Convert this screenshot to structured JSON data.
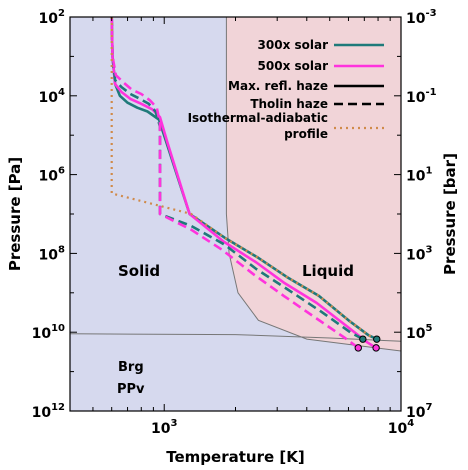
{
  "chart_data": {
    "type": "line",
    "xlabel": "Temperature [K]",
    "ylabel_left": "Pressure [Pa]",
    "ylabel_right": "Pressure [bar]",
    "x_scale": "log",
    "y_scale": "log",
    "xlim": [
      400,
      10000
    ],
    "ylim_pa": [
      100,
      1000000000000
    ],
    "x_ticks": [
      {
        "label": "10",
        "exp": "3"
      },
      {
        "label": "10",
        "exp": "4"
      }
    ],
    "y_ticks_left": [
      {
        "label": "10",
        "exp": "2"
      },
      {
        "label": "10",
        "exp": "4"
      },
      {
        "label": "10",
        "exp": "6"
      },
      {
        "label": "10",
        "exp": "8"
      },
      {
        "label": "10",
        "exp": "10"
      },
      {
        "label": "10",
        "exp": "12"
      }
    ],
    "y_ticks_right": [
      {
        "label": "10",
        "exp": "-3"
      },
      {
        "label": "10",
        "exp": "-1"
      },
      {
        "label": "10",
        "exp": "1"
      },
      {
        "label": "10",
        "exp": "3"
      },
      {
        "label": "10",
        "exp": "5"
      },
      {
        "label": "10",
        "exp": "7"
      }
    ],
    "regions": {
      "solid_label": "Solid",
      "liquid_label": "Liquid",
      "brg_label": "Brg",
      "ppv_label": "PPv",
      "solid_color": "#d6d9ee",
      "liquid_color": "#f1d4d8"
    },
    "boundaries": {
      "melting_curve": [
        [
          1830,
          100
        ],
        [
          1830,
          10000000
        ],
        [
          1880,
          100000000
        ],
        [
          2050,
          1000000000
        ],
        [
          2500,
          5000000000
        ],
        [
          4000,
          15000000000
        ],
        [
          10000,
          30000000000
        ]
      ],
      "brg_ppv_curve": [
        [
          400,
          11000000000
        ],
        [
          2000,
          11500000000
        ],
        [
          5000,
          14000000000
        ],
        [
          10000,
          17000000000
        ]
      ]
    },
    "legend": [
      {
        "label": "300x solar",
        "color": "#1f7a7a",
        "style": "solid"
      },
      {
        "label": "500x solar",
        "color": "#ff33dd",
        "style": "solid"
      },
      {
        "label": "Max. refl. haze",
        "color": "#000000",
        "style": "solid"
      },
      {
        "label": "Tholin haze",
        "color": "#000000",
        "style": "dashed"
      },
      {
        "label": "Isothermal-adiabatic profile",
        "color": "#d08a4a",
        "style": "dotted"
      }
    ],
    "legend_placement": "top-right",
    "series": [
      {
        "name": "300x solar",
        "haze": "Max. refl. haze",
        "color": "#1f7a7a",
        "style": "solid",
        "points": [
          [
            600,
            100
          ],
          [
            605,
            1000
          ],
          [
            620,
            5000
          ],
          [
            650,
            10000
          ],
          [
            700,
            15000
          ],
          [
            770,
            20000
          ],
          [
            850,
            25000
          ],
          [
            950,
            40000
          ],
          [
            1020,
            150000
          ],
          [
            1280,
            10000000
          ],
          [
            1800,
            40000000
          ],
          [
            2500,
            130000000
          ],
          [
            3300,
            400000000
          ],
          [
            4500,
            1200000000
          ],
          [
            6000,
            5000000000
          ],
          [
            7300,
            12000000000
          ],
          [
            7900,
            15000000000
          ]
        ]
      },
      {
        "name": "500x solar",
        "haze": "Max. refl. haze",
        "color": "#ff33dd",
        "style": "solid",
        "points": [
          [
            600,
            100
          ],
          [
            605,
            1000
          ],
          [
            620,
            5000
          ],
          [
            660,
            8000
          ],
          [
            720,
            12000
          ],
          [
            800,
            16000
          ],
          [
            890,
            22000
          ],
          [
            960,
            35000
          ],
          [
            1030,
            150000
          ],
          [
            1280,
            10000000
          ],
          [
            1780,
            50000000
          ],
          [
            2450,
            170000000
          ],
          [
            3200,
            550000000
          ],
          [
            4400,
            1800000000
          ],
          [
            5900,
            7000000000
          ],
          [
            7200,
            18000000000
          ],
          [
            7850,
            25000000000
          ]
        ]
      },
      {
        "name": "300x solar",
        "haze": "Tholin haze",
        "color": "#1f7a7a",
        "style": "dashed",
        "points": [
          [
            600,
            100
          ],
          [
            605,
            1000
          ],
          [
            620,
            4000
          ],
          [
            660,
            6000
          ],
          [
            720,
            9000
          ],
          [
            790,
            12000
          ],
          [
            860,
            16000
          ],
          [
            920,
            25000
          ],
          [
            960,
            60000
          ],
          [
            960,
            200000
          ],
          [
            960,
            10000000
          ],
          [
            1300,
            20000000
          ],
          [
            1800,
            60000000
          ],
          [
            2450,
            250000000
          ],
          [
            3300,
            800000000
          ],
          [
            4600,
            3000000000
          ],
          [
            6100,
            10000000000
          ],
          [
            6900,
            15000000000
          ]
        ]
      },
      {
        "name": "500x solar",
        "haze": "Tholin haze",
        "color": "#ff33dd",
        "style": "dashed",
        "points": [
          [
            600,
            100
          ],
          [
            605,
            1000
          ],
          [
            625,
            3000
          ],
          [
            670,
            4500
          ],
          [
            730,
            7000
          ],
          [
            800,
            9000
          ],
          [
            870,
            13000
          ],
          [
            930,
            20000
          ],
          [
            960,
            50000
          ],
          [
            960,
            200000
          ],
          [
            960,
            10000000
          ],
          [
            1300,
            25000000
          ],
          [
            1750,
            80000000
          ],
          [
            2400,
            350000000
          ],
          [
            3200,
            1200000000
          ],
          [
            4400,
            4500000000
          ],
          [
            5800,
            14000000000
          ],
          [
            6600,
            25000000000
          ]
        ]
      },
      {
        "name": "Isothermal-adiabatic profile",
        "color": "#d08a4a",
        "style": "dotted",
        "points": [
          [
            600,
            100
          ],
          [
            600,
            3000000
          ],
          [
            1300,
            10000000
          ],
          [
            1800,
            40000000
          ],
          [
            2500,
            130000000
          ],
          [
            3300,
            400000000
          ],
          [
            4500,
            1200000000
          ],
          [
            6000,
            5000000000
          ],
          [
            7300,
            12000000000
          ],
          [
            7900,
            15000000000
          ]
        ]
      }
    ],
    "markers": [
      {
        "T": 7900,
        "P": 15000000000,
        "color": "#1f7a7a"
      },
      {
        "T": 7850,
        "P": 25000000000,
        "color": "#ff33dd"
      },
      {
        "T": 6900,
        "P": 15000000000,
        "color": "#1f7a7a"
      },
      {
        "T": 6600,
        "P": 25000000000,
        "color": "#ff33dd"
      }
    ]
  }
}
